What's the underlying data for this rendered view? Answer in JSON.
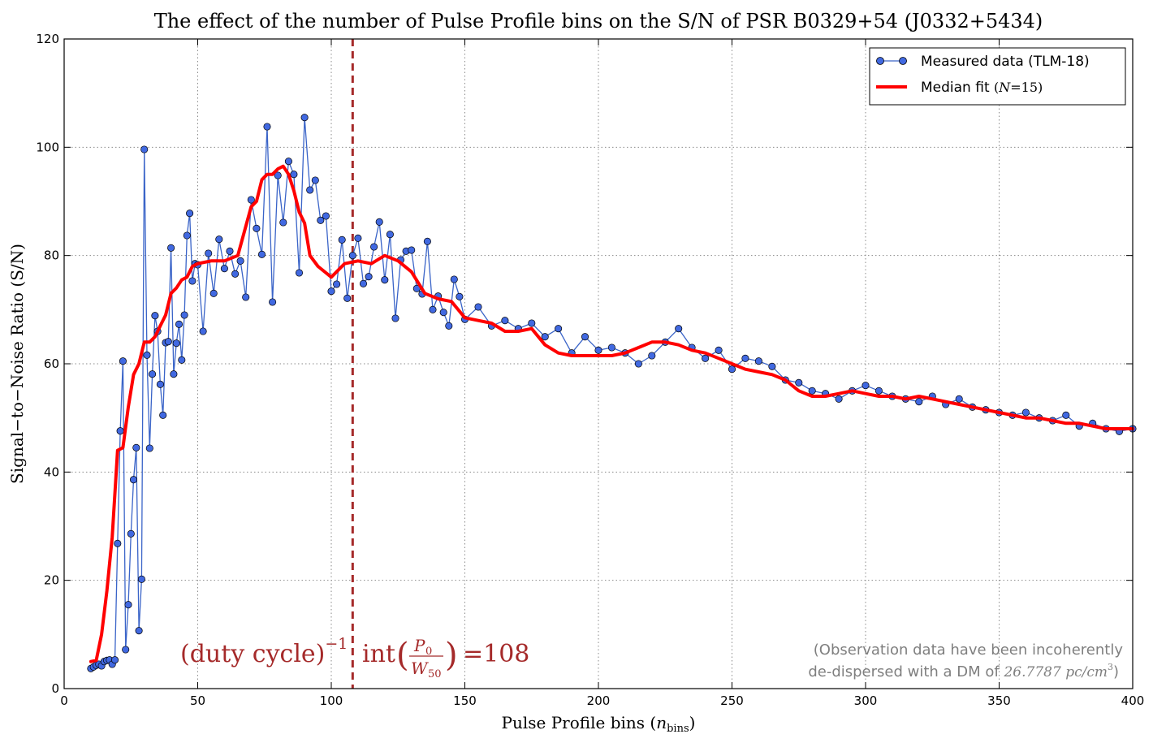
{
  "colors": {
    "measured_line": "#3a64c8",
    "measured_marker": "#4169e1",
    "median_fit": "#ff0000",
    "duty_marker": "#a52a2a",
    "annotation_dark_red": "#a52a2a",
    "annotation_gray": "#7f7f7f"
  },
  "chart_data": {
    "type": "line",
    "title": "The effect of the number of Pulse Profile bins on the S/N of PSR B0329+54 (J0332+5434)",
    "xlabel": "Pulse Profile bins (n_bins)",
    "ylabel": "Signal−to−Noise Ratio (S/N)",
    "xlim": [
      0,
      400
    ],
    "ylim": [
      0,
      120
    ],
    "xticks": [
      0,
      50,
      100,
      150,
      200,
      250,
      300,
      350,
      400
    ],
    "yticks": [
      0,
      20,
      40,
      60,
      80,
      100,
      120
    ],
    "grid": true,
    "legend_position": "top-right",
    "legend": [
      {
        "label": "Measured data (TLM-18)",
        "style": "line-marker"
      },
      {
        "label": "Median fit (N=15)",
        "style": "thick-line"
      }
    ],
    "series": [
      {
        "name": "Measured data (TLM-18)",
        "x": [
          10,
          11,
          12,
          13,
          14,
          15,
          16,
          17,
          18,
          19,
          20,
          21,
          22,
          23,
          24,
          25,
          26,
          27,
          28,
          29,
          30,
          31,
          32,
          33,
          34,
          35,
          36,
          37,
          38,
          39,
          40,
          41,
          42,
          43,
          44,
          45,
          46,
          47,
          48,
          49,
          50,
          52,
          54,
          56,
          58,
          60,
          62,
          64,
          66,
          68,
          70,
          72,
          74,
          76,
          78,
          80,
          82,
          84,
          86,
          88,
          90,
          92,
          94,
          96,
          98,
          100,
          102,
          104,
          106,
          108,
          110,
          112,
          114,
          116,
          118,
          120,
          122,
          124,
          126,
          128,
          130,
          132,
          134,
          136,
          138,
          140,
          142,
          144,
          146,
          148,
          150,
          155,
          160,
          165,
          170,
          175,
          180,
          185,
          190,
          195,
          200,
          205,
          210,
          215,
          220,
          225,
          230,
          235,
          240,
          245,
          250,
          255,
          260,
          265,
          270,
          275,
          280,
          285,
          290,
          295,
          300,
          305,
          310,
          315,
          320,
          325,
          330,
          335,
          340,
          345,
          350,
          355,
          360,
          365,
          370,
          375,
          380,
          385,
          390,
          395,
          400
        ],
        "y": [
          3.7,
          4.0,
          4.3,
          4.5,
          4.2,
          5.0,
          5.2,
          5.3,
          4.5,
          5.3,
          26.8,
          47.6,
          60.5,
          7.2,
          15.5,
          28.6,
          38.6,
          44.5,
          10.7,
          20.2,
          99.6,
          61.6,
          44.4,
          58.1,
          68.9,
          66.0,
          56.2,
          50.5,
          63.9,
          64.1,
          81.4,
          58.1,
          63.8,
          67.3,
          60.7,
          69.0,
          83.7,
          87.8,
          75.3,
          78.5,
          78.3,
          66.0,
          80.4,
          73.0,
          83.0,
          77.6,
          80.8,
          76.6,
          79.0,
          72.3,
          90.3,
          85.0,
          80.2,
          103.8,
          71.4,
          94.8,
          86.1,
          97.4,
          95.0,
          76.8,
          105.5,
          92.1,
          93.9,
          86.5,
          87.3,
          73.4,
          74.7,
          82.9,
          72.1,
          80.0,
          83.2,
          74.8,
          76.1,
          81.6,
          86.2,
          75.5,
          83.9,
          68.4,
          79.2,
          80.8,
          81.0,
          73.9,
          72.9,
          82.6,
          70.0,
          72.5,
          69.5,
          67.0,
          75.6,
          72.4,
          68.2,
          70.5,
          67.0,
          68.0,
          66.5,
          67.5,
          65.0,
          66.5,
          62.0,
          65.0,
          62.5,
          63.0,
          62.0,
          60.0,
          61.5,
          64.0,
          66.5,
          63.0,
          61.0,
          62.5,
          59.0,
          61.0,
          60.5,
          59.5,
          57.0,
          56.5,
          55.0,
          54.5,
          53.5,
          55.0,
          56.0,
          55.0,
          54.0,
          53.5,
          53.0,
          54.0,
          52.5,
          53.5,
          52.0,
          51.5,
          51.0,
          50.5,
          51.0,
          50.0,
          49.5,
          50.5,
          48.5,
          49.0,
          48.0,
          47.5,
          48.0
        ]
      },
      {
        "name": "Median fit (N=15)",
        "x": [
          10,
          12,
          14,
          16,
          18,
          20,
          22,
          24,
          26,
          28,
          30,
          32,
          34,
          36,
          38,
          40,
          42,
          44,
          46,
          48,
          50,
          55,
          60,
          65,
          70,
          72,
          74,
          76,
          78,
          80,
          82,
          84,
          86,
          88,
          90,
          92,
          95,
          100,
          105,
          110,
          115,
          120,
          125,
          130,
          135,
          140,
          145,
          150,
          155,
          160,
          165,
          170,
          175,
          180,
          185,
          190,
          195,
          200,
          205,
          210,
          215,
          220,
          225,
          230,
          235,
          240,
          245,
          250,
          255,
          260,
          265,
          270,
          275,
          280,
          285,
          290,
          295,
          300,
          305,
          310,
          315,
          320,
          325,
          330,
          335,
          340,
          345,
          350,
          355,
          360,
          365,
          370,
          375,
          380,
          385,
          390,
          395,
          400
        ],
        "y": [
          5.0,
          5.2,
          10.0,
          18.0,
          28.0,
          44.0,
          44.5,
          52.0,
          58.0,
          60.0,
          64.0,
          64.0,
          65.0,
          67.0,
          69.0,
          73.0,
          74.0,
          75.5,
          76.0,
          78.0,
          78.5,
          79.0,
          79.0,
          80.0,
          89.0,
          90.0,
          94.0,
          95.0,
          95.0,
          96.0,
          96.5,
          95.0,
          92.0,
          88.0,
          86.0,
          80.0,
          78.0,
          76.0,
          78.5,
          79.0,
          78.5,
          80.0,
          79.0,
          77.0,
          73.0,
          72.0,
          71.5,
          68.5,
          68.0,
          67.5,
          66.0,
          66.0,
          66.5,
          63.5,
          62.0,
          61.5,
          61.5,
          61.5,
          61.5,
          62.0,
          63.0,
          64.0,
          64.0,
          63.5,
          62.5,
          62.0,
          61.0,
          60.0,
          59.0,
          58.5,
          58.0,
          57.0,
          55.0,
          54.0,
          54.0,
          54.5,
          55.0,
          54.5,
          54.0,
          54.0,
          53.5,
          54.0,
          53.5,
          53.0,
          52.5,
          52.0,
          51.5,
          51.0,
          50.5,
          50.0,
          50.0,
          49.5,
          49.0,
          49.0,
          48.5,
          48.0,
          48.0,
          48.0
        ]
      }
    ],
    "vline": {
      "x": 108,
      "style": "dashed"
    },
    "annotations": {
      "duty_cycle": {
        "text": "(duty cycle)⁻¹ int(P₀/W₅₀)=108",
        "lhs": "(duty cycle)",
        "exp": "−1",
        "int": "int",
        "p0": "P",
        "p0_sub": "0",
        "w50": "W",
        "w50_sub": "50",
        "value": "=108"
      },
      "note_line1": "(Observation data have been incoherently",
      "note_line2_prefix": "de-dispersed with a DM of ",
      "note_line2_value": "26.7787 pc/cm",
      "note_line2_exp": "3",
      "note_line2_suffix": ")"
    }
  }
}
